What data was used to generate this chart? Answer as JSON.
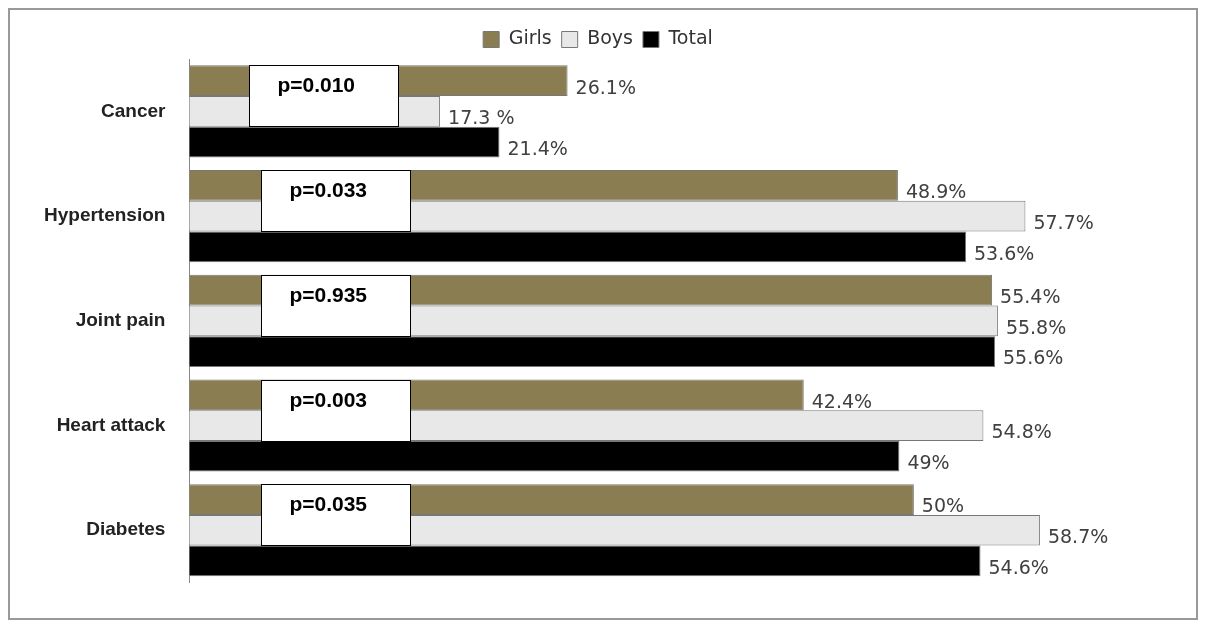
{
  "chart_data": {
    "type": "bar",
    "orientation": "horizontal",
    "categories": [
      "Cancer",
      "Hypertension",
      "Joint pain",
      "Heart attack",
      "Diabetes"
    ],
    "series": [
      {
        "name": "Girls",
        "color": "#8b7d52",
        "values": [
          26.1,
          48.9,
          55.4,
          42.4,
          50
        ],
        "value_labels": [
          "26.1%",
          "48.9%",
          "55.4%",
          "42.4%",
          "50%"
        ]
      },
      {
        "name": "Boys",
        "color": "#e8e8e8",
        "values": [
          17.3,
          57.7,
          55.8,
          54.8,
          58.7
        ],
        "value_labels": [
          "17.3 %",
          "57.7%",
          "55.8%",
          "54.8%",
          "58.7%"
        ]
      },
      {
        "name": "Total",
        "color": "#000000",
        "values": [
          21.4,
          53.6,
          55.6,
          49,
          54.6
        ],
        "value_labels": [
          "21.4%",
          "53.6%",
          "55.6%",
          "49%",
          "54.6%"
        ]
      }
    ],
    "annotations": [
      "p=0.010",
      "p=0.033",
      "p=0.935",
      "p=0.003",
      "p=0.035"
    ],
    "legend": "top",
    "grid": false
  }
}
